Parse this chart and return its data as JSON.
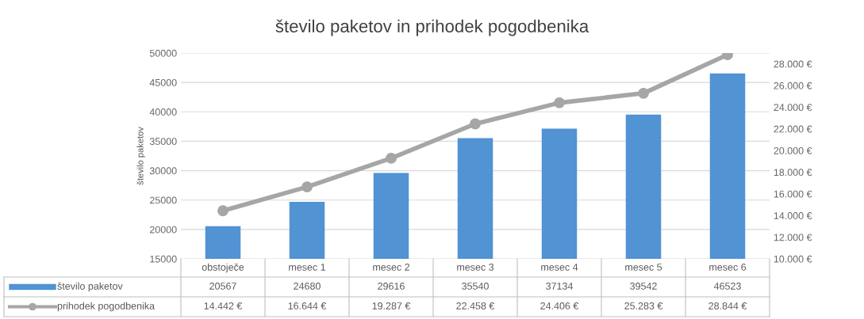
{
  "chart_data": {
    "type": "bar",
    "title": "število paketov in prihodek pogodbenika",
    "ylabel": "število paketov",
    "categories": [
      "obstoječe",
      "mesec 1",
      "mesec 2",
      "mesec 3",
      "mesec 4",
      "mesec 5",
      "mesec 6"
    ],
    "series": [
      {
        "name": "število paketov",
        "color": "#5193d3",
        "values": [
          20567,
          24680,
          29616,
          35540,
          37134,
          39542,
          46523
        ],
        "value_labels": [
          "20567",
          "24680",
          "29616",
          "35540",
          "37134",
          "39542",
          "46523"
        ]
      },
      {
        "name": "prihodek pogodbenika",
        "type": "line",
        "axis": "y2",
        "color": "#a6a6a6",
        "marker": "circle",
        "values": [
          14442,
          16644,
          19287,
          22458,
          24406,
          25283,
          28844
        ],
        "value_labels": [
          "14.442 €",
          "16.644 €",
          "19.287 €",
          "22.458 €",
          "24.406 €",
          "25.283 €",
          "28.844 €"
        ]
      }
    ],
    "ylim": [
      15000,
      50000
    ],
    "yticks": [
      15000,
      20000,
      25000,
      30000,
      35000,
      40000,
      45000,
      50000
    ],
    "y2lim": [
      10000,
      29000
    ],
    "y2ticks": [
      {
        "value": 10000,
        "label": "10.000 €"
      },
      {
        "value": 12000,
        "label": "12.000 €"
      },
      {
        "value": 14000,
        "label": "14.000 €"
      },
      {
        "value": 16000,
        "label": "16.000 €"
      },
      {
        "value": 18000,
        "label": "18.000 €"
      },
      {
        "value": 20000,
        "label": "20.000 €"
      },
      {
        "value": 22000,
        "label": "22.000 €"
      },
      {
        "value": 24000,
        "label": "24.000 €"
      },
      {
        "value": 26000,
        "label": "26.000 €"
      },
      {
        "value": 28000,
        "label": "28.000 €"
      }
    ],
    "grid": "y",
    "legend": "bottom",
    "line_style": "solid"
  }
}
